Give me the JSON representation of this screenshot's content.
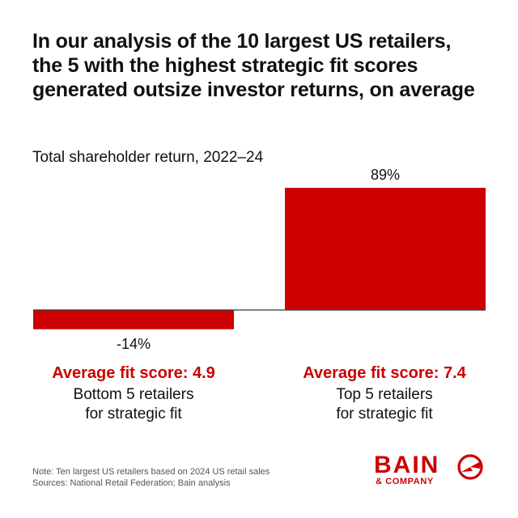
{
  "title": "In our analysis of the 10 largest US retailers, the 5 with the highest strategic fit scores generated outsize investor returns, on average",
  "chart_data": {
    "type": "bar",
    "title": "In our analysis of the 10 largest US retailers, the 5 with the highest strategic fit scores generated outsize investor returns, on average",
    "subtitle": "Total shareholder return, 2022–24",
    "categories": [
      "Bottom 5 retailers for strategic fit",
      "Top 5 retailers for strategic fit"
    ],
    "values": [
      -14,
      89
    ],
    "data_labels": [
      "-14%",
      "89%"
    ],
    "ylim": [
      -14,
      89
    ],
    "bar_color": "#cc0000",
    "grid": false,
    "groups": [
      {
        "score_label": "Average fit score: 4.9",
        "desc_line1": "Bottom 5 retailers",
        "desc_line2": "for strategic fit"
      },
      {
        "score_label": "Average fit score: 7.4",
        "desc_line1": "Top 5 retailers",
        "desc_line2": "for strategic fit"
      }
    ]
  },
  "footer": {
    "note": "Note: Ten largest US retailers based on 2024 US retail sales",
    "sources": "Sources: National Retail Federation; Bain analysis"
  },
  "logo": {
    "word": "BAIN",
    "sub": "& COMPANY",
    "color": "#cc0000",
    "icon": "bain-target-icon"
  }
}
